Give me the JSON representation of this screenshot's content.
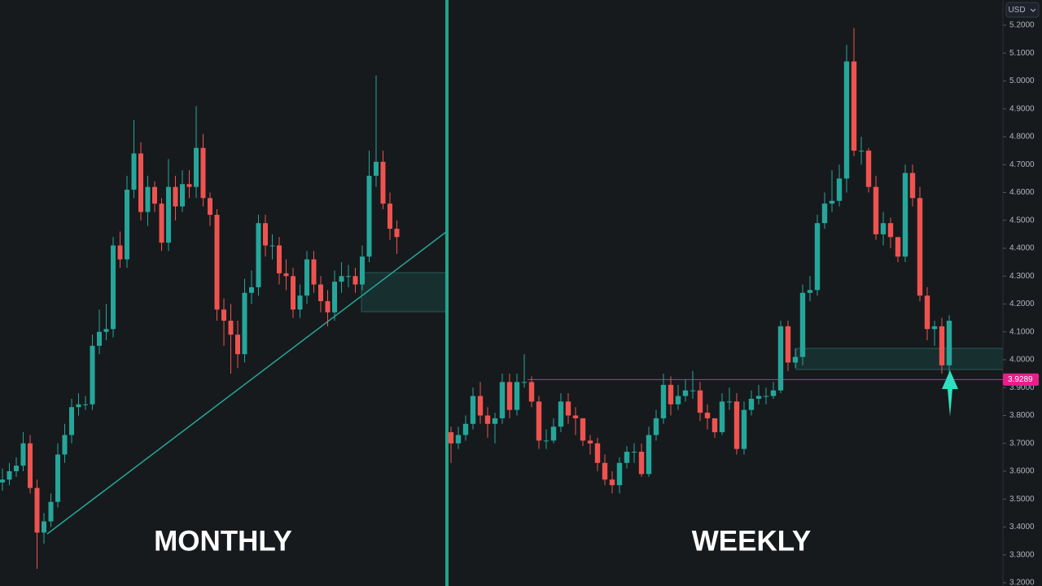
{
  "chart_data": [
    {
      "type": "candlestick",
      "label": "MONTHLY",
      "up_color": "#26a69a",
      "down_color": "#ef5350",
      "ylim": [
        3.2,
        5.2
      ],
      "series": [
        {
          "open": [
            3.56,
            3.57,
            3.6,
            3.62,
            3.7,
            3.54,
            3.38,
            3.42,
            3.49,
            3.66,
            3.73,
            3.83,
            3.84,
            3.84,
            4.05,
            4.1,
            4.11,
            4.41,
            4.36,
            4.61,
            4.74,
            4.53,
            4.62,
            4.56,
            4.42,
            4.62,
            4.55,
            4.63,
            4.62,
            4.76,
            4.58,
            4.52,
            4.18,
            4.14,
            4.09,
            4.02,
            4.24,
            4.26,
            4.49,
            4.41,
            4.41,
            4.31,
            4.3,
            4.18,
            4.23,
            4.36,
            4.27,
            4.21,
            4.17,
            4.28,
            4.3,
            4.3,
            4.27,
            4.37,
            4.66,
            4.71,
            4.56,
            4.47
          ],
          "high": [
            3.61,
            3.63,
            3.65,
            3.74,
            3.73,
            3.57,
            3.45,
            3.52,
            3.7,
            3.77,
            3.86,
            3.88,
            3.87,
            4.09,
            4.18,
            4.2,
            4.44,
            4.46,
            4.66,
            4.86,
            4.78,
            4.66,
            4.64,
            4.58,
            4.72,
            4.66,
            4.68,
            4.68,
            4.91,
            4.81,
            4.6,
            4.54,
            4.22,
            4.2,
            4.14,
            4.29,
            4.32,
            4.52,
            4.52,
            4.45,
            4.44,
            4.36,
            4.33,
            4.27,
            4.39,
            4.39,
            4.3,
            4.25,
            4.32,
            4.35,
            4.34,
            4.33,
            4.41,
            4.75,
            5.02,
            4.75,
            4.6,
            4.5
          ],
          "low": [
            3.53,
            3.55,
            3.58,
            3.6,
            3.52,
            3.25,
            3.34,
            3.4,
            3.47,
            3.63,
            3.7,
            3.8,
            3.82,
            3.82,
            4.02,
            4.07,
            4.08,
            4.33,
            4.33,
            4.58,
            4.5,
            4.48,
            4.53,
            4.39,
            4.39,
            4.5,
            4.53,
            4.58,
            4.58,
            4.55,
            4.48,
            4.14,
            4.05,
            3.95,
            3.97,
            3.99,
            4.2,
            4.23,
            4.37,
            4.36,
            4.27,
            4.25,
            4.15,
            4.15,
            4.2,
            4.24,
            4.17,
            4.12,
            4.14,
            4.24,
            4.26,
            4.24,
            4.25,
            4.35,
            4.62,
            4.54,
            4.43,
            4.38
          ],
          "close": [
            3.57,
            3.6,
            3.62,
            3.7,
            3.54,
            3.38,
            3.42,
            3.49,
            3.66,
            3.73,
            3.83,
            3.84,
            3.84,
            4.05,
            4.1,
            4.11,
            4.41,
            4.36,
            4.61,
            4.74,
            4.53,
            4.62,
            4.56,
            4.42,
            4.62,
            4.55,
            4.63,
            4.62,
            4.76,
            4.58,
            4.52,
            4.18,
            4.14,
            4.09,
            4.02,
            4.24,
            4.26,
            4.49,
            4.41,
            4.41,
            4.31,
            4.3,
            4.18,
            4.23,
            4.36,
            4.27,
            4.21,
            4.17,
            4.28,
            4.3,
            4.3,
            4.27,
            4.37,
            4.66,
            4.71,
            4.56,
            4.47,
            4.44
          ]
        }
      ]
    },
    {
      "type": "candlestick",
      "label": "WEEKLY",
      "up_color": "#26a69a",
      "down_color": "#ef5350",
      "ylim": [
        3.2,
        5.2
      ],
      "currency": "USD",
      "yticks": [
        {
          "value": 3.2,
          "label": "3.2000"
        },
        {
          "value": 3.3,
          "label": "3.3000"
        },
        {
          "value": 3.4,
          "label": "3.4000"
        },
        {
          "value": 3.5,
          "label": "3.5000"
        },
        {
          "value": 3.6,
          "label": "3.6000"
        },
        {
          "value": 3.7,
          "label": "3.7000"
        },
        {
          "value": 3.8,
          "label": "3.8000"
        },
        {
          "value": 3.9,
          "label": "3.9000"
        },
        {
          "value": 4.0,
          "label": "4.0000"
        },
        {
          "value": 4.1,
          "label": "4.1000"
        },
        {
          "value": 4.2,
          "label": "4.2000"
        },
        {
          "value": 4.3,
          "label": "4.3000"
        },
        {
          "value": 4.4,
          "label": "4.4000"
        },
        {
          "value": 4.5,
          "label": "4.5000"
        },
        {
          "value": 4.6,
          "label": "4.6000"
        },
        {
          "value": 4.7,
          "label": "4.7000"
        },
        {
          "value": 4.8,
          "label": "4.8000"
        },
        {
          "value": 4.9,
          "label": "4.9000"
        },
        {
          "value": 5.0,
          "label": "5.0000"
        },
        {
          "value": 5.1,
          "label": "5.1000"
        },
        {
          "value": 5.2,
          "label": "5.2000"
        }
      ],
      "price_line": {
        "value": 3.9289,
        "label": "3.9289",
        "color": "#e91e8c"
      },
      "series": [
        {
          "open": [
            3.74,
            3.7,
            3.73,
            3.77,
            3.87,
            3.8,
            3.77,
            3.79,
            3.92,
            3.82,
            3.92,
            3.92,
            3.85,
            3.71,
            3.71,
            3.76,
            3.85,
            3.8,
            3.79,
            3.71,
            3.7,
            3.63,
            3.57,
            3.55,
            3.63,
            3.67,
            3.67,
            3.59,
            3.73,
            3.79,
            3.91,
            3.84,
            3.87,
            3.89,
            3.89,
            3.81,
            3.79,
            3.74,
            3.85,
            3.85,
            3.68,
            3.82,
            3.86,
            3.87,
            3.87,
            3.89,
            4.12,
            3.99,
            4.01,
            4.24,
            4.25,
            4.49,
            4.56,
            4.57,
            4.65,
            5.07,
            4.75,
            4.75,
            4.62,
            4.45,
            4.49,
            4.44,
            4.37,
            4.67,
            4.58,
            4.23,
            4.11,
            4.12,
            3.98
          ],
          "high": [
            3.76,
            3.76,
            3.8,
            3.9,
            3.92,
            3.83,
            3.81,
            3.95,
            3.95,
            3.95,
            4.02,
            3.94,
            3.87,
            3.75,
            3.79,
            3.88,
            3.88,
            3.83,
            3.78,
            3.73,
            3.72,
            3.66,
            3.6,
            3.65,
            3.69,
            3.7,
            3.7,
            3.76,
            3.82,
            3.95,
            3.94,
            3.91,
            3.93,
            3.96,
            3.92,
            3.84,
            3.78,
            3.88,
            3.9,
            3.88,
            3.85,
            3.89,
            3.91,
            3.9,
            3.92,
            4.14,
            4.14,
            4.04,
            4.27,
            4.3,
            4.52,
            4.6,
            4.68,
            4.7,
            5.13,
            5.19,
            4.8,
            4.76,
            4.66,
            4.53,
            4.51,
            4.44,
            4.7,
            4.7,
            4.62,
            4.26,
            4.14,
            4.15,
            4.16
          ],
          "low": [
            3.63,
            3.68,
            3.71,
            3.75,
            3.77,
            3.72,
            3.7,
            3.77,
            3.79,
            3.8,
            3.9,
            3.83,
            3.68,
            3.68,
            3.7,
            3.74,
            3.77,
            3.73,
            3.69,
            3.66,
            3.6,
            3.55,
            3.52,
            3.52,
            3.61,
            3.63,
            3.58,
            3.58,
            3.71,
            3.77,
            3.8,
            3.82,
            3.85,
            3.86,
            3.78,
            3.75,
            3.72,
            3.73,
            3.82,
            3.66,
            3.66,
            3.8,
            3.84,
            3.84,
            3.86,
            3.88,
            3.96,
            3.97,
            3.98,
            4.21,
            4.23,
            4.47,
            4.53,
            4.55,
            4.6,
            4.73,
            4.7,
            4.6,
            4.43,
            4.41,
            4.4,
            4.35,
            4.35,
            4.55,
            4.21,
            4.07,
            4.05,
            3.95,
            3.95
          ],
          "close": [
            3.7,
            3.73,
            3.77,
            3.87,
            3.8,
            3.77,
            3.79,
            3.92,
            3.82,
            3.92,
            3.92,
            3.85,
            3.71,
            3.71,
            3.76,
            3.85,
            3.8,
            3.79,
            3.71,
            3.7,
            3.63,
            3.57,
            3.55,
            3.63,
            3.67,
            3.67,
            3.59,
            3.73,
            3.79,
            3.91,
            3.84,
            3.87,
            3.89,
            3.89,
            3.81,
            3.79,
            3.74,
            3.85,
            3.85,
            3.68,
            3.82,
            3.86,
            3.87,
            3.87,
            3.89,
            4.12,
            3.99,
            4.01,
            4.24,
            4.25,
            4.49,
            4.56,
            4.57,
            4.65,
            5.07,
            4.75,
            4.75,
            4.62,
            4.45,
            4.49,
            4.44,
            4.37,
            4.67,
            4.58,
            4.23,
            4.11,
            4.12,
            3.98,
            4.14
          ]
        }
      ]
    }
  ]
}
